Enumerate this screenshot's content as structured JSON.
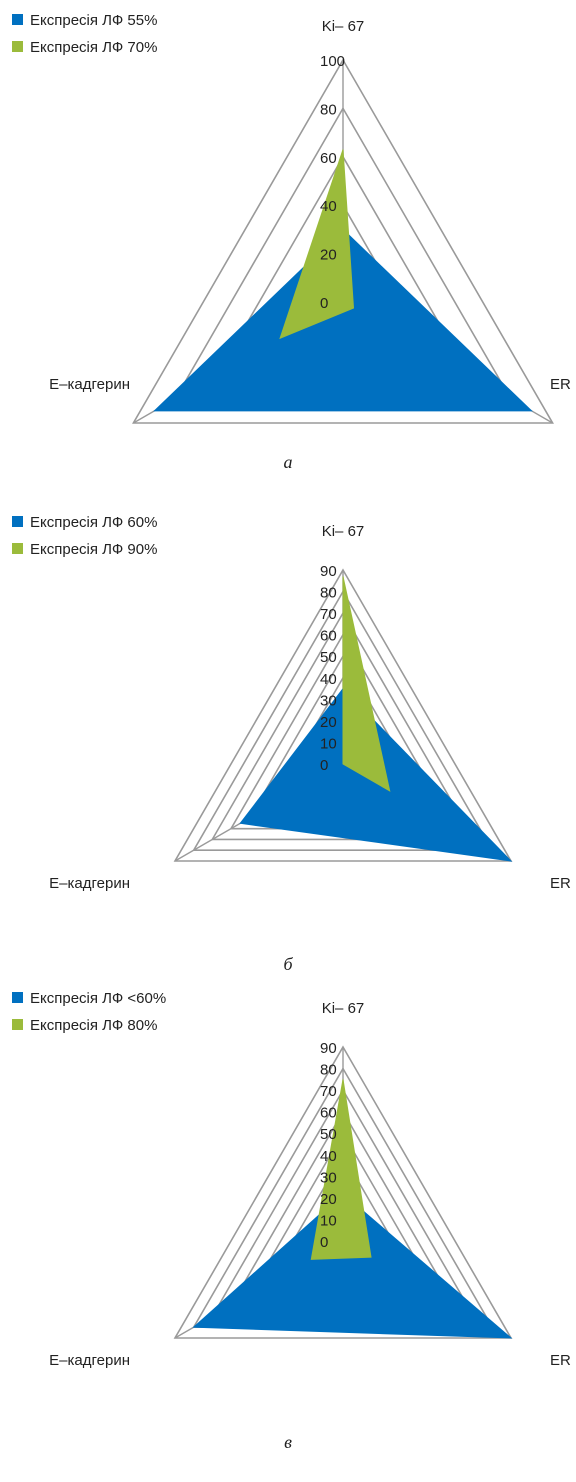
{
  "chart_data": [
    {
      "type": "radar",
      "panel_label": "а",
      "axes": [
        "Ki-67",
        "ER",
        "E-кадгерин"
      ],
      "axis_display": [
        "Ki– 67",
        "ER",
        "E–кадгерин"
      ],
      "range": [
        0,
        100
      ],
      "ticks": [
        0,
        20,
        40,
        60,
        80,
        100
      ],
      "grid": true,
      "legend_position": "top-left",
      "series": [
        {
          "name": "Експресія ЛФ 55%",
          "color": "#0070c0",
          "values": [
            30,
            90,
            90
          ]
        },
        {
          "name": "Експресія ЛФ 70%",
          "color": "#9bbb3b",
          "values": [
            63,
            5,
            30
          ]
        }
      ]
    },
    {
      "type": "radar",
      "panel_label": "б",
      "axes": [
        "Ki-67",
        "ER",
        "E-кадгерин"
      ],
      "axis_display": [
        "Ki– 67",
        "ER",
        "E–кадгерин"
      ],
      "range": [
        0,
        90
      ],
      "ticks": [
        0,
        10,
        20,
        30,
        40,
        50,
        60,
        70,
        80,
        90
      ],
      "grid": true,
      "legend_position": "top-left",
      "series": [
        {
          "name": "Експресія ЛФ 60%",
          "color": "#0070c0",
          "values": [
            35,
            90,
            55
          ]
        },
        {
          "name": "Експресія ЛФ 90%",
          "color": "#9bbb3b",
          "values": [
            87,
            25,
            0
          ]
        }
      ]
    },
    {
      "type": "radar",
      "panel_label": "в",
      "axes": [
        "Ki-67",
        "ER",
        "E-кадгерин"
      ],
      "axis_display": [
        "Ki– 67",
        "ER",
        "E–кадгерин"
      ],
      "range": [
        0,
        90
      ],
      "ticks": [
        0,
        10,
        20,
        30,
        40,
        50,
        60,
        70,
        80,
        90
      ],
      "grid": true,
      "legend_position": "top-left",
      "series": [
        {
          "name": "Експресія ЛФ <60%",
          "color": "#0070c0",
          "values": [
            22,
            90,
            80
          ]
        },
        {
          "name": "Експресія ЛФ 80%",
          "color": "#9bbb3b",
          "values": [
            75,
            15,
            17
          ]
        }
      ]
    }
  ]
}
